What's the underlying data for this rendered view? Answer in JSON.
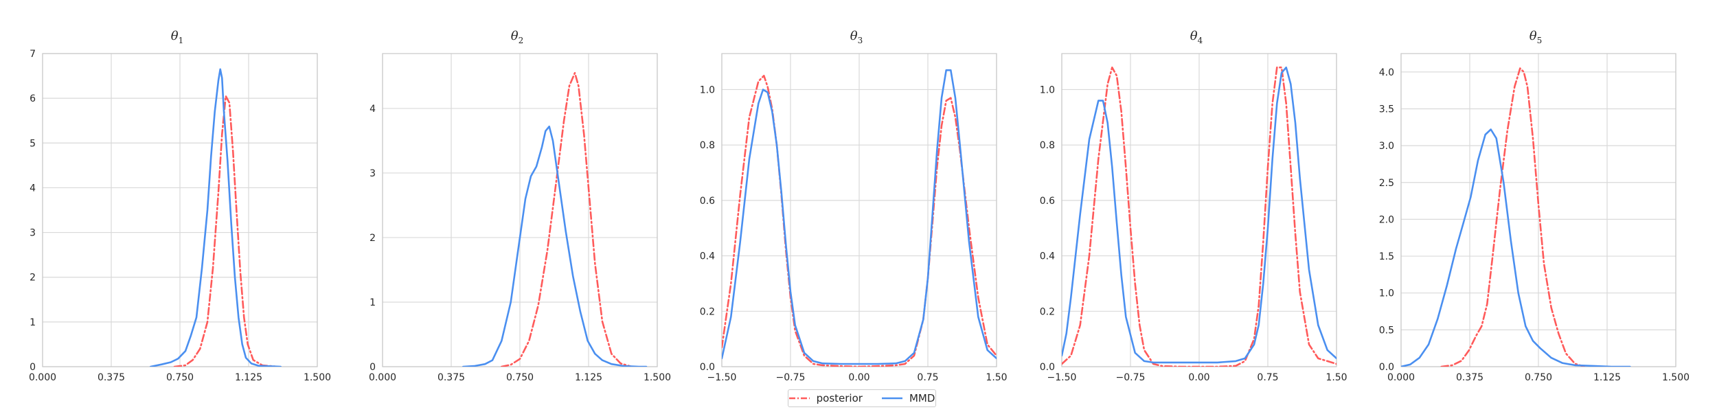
{
  "colors": {
    "posterior": "#ff5a5a",
    "mmd": "#4a8ff0",
    "grid": "#d9d9d9",
    "axis": "#c8c8c8",
    "text": "#262626"
  },
  "legend": {
    "posterior_label": "posterior",
    "mmd_label": "MMD",
    "placement": "bottom-center"
  },
  "chart_data": [
    {
      "type": "line",
      "title": "θ1",
      "title_sym": "θ",
      "title_sub": "1",
      "xlim": [
        0.0,
        1.5
      ],
      "ylim": [
        0,
        7
      ],
      "xticks": [
        0,
        0.375,
        0.75,
        1.125,
        1.5
      ],
      "xtick_labels": [
        "0.000",
        "0.375",
        "0.750",
        "1.125",
        "1.500"
      ],
      "yticks": [
        0,
        1,
        2,
        3,
        4,
        5,
        6,
        7
      ],
      "ytick_labels": [
        "0",
        "1",
        "2",
        "3",
        "4",
        "5",
        "6",
        "7"
      ],
      "grid": true,
      "series": [
        {
          "name": "posterior",
          "style": "dashdot",
          "x": [
            0.72,
            0.78,
            0.82,
            0.86,
            0.9,
            0.93,
            0.96,
            0.98,
            1.0,
            1.02,
            1.04,
            1.06,
            1.08,
            1.1,
            1.12,
            1.15,
            1.2,
            1.28
          ],
          "y": [
            0.0,
            0.03,
            0.15,
            0.4,
            1.0,
            2.2,
            3.9,
            5.2,
            6.05,
            5.9,
            4.8,
            3.4,
            2.1,
            1.1,
            0.5,
            0.15,
            0.03,
            0.0
          ]
        },
        {
          "name": "MMD",
          "style": "solid",
          "x": [
            0.59,
            0.65,
            0.7,
            0.74,
            0.78,
            0.81,
            0.84,
            0.87,
            0.9,
            0.92,
            0.94,
            0.96,
            0.97,
            0.98,
            0.99,
            1.01,
            1.03,
            1.05,
            1.07,
            1.09,
            1.11,
            1.14,
            1.18,
            1.24,
            1.3
          ],
          "y": [
            0.0,
            0.05,
            0.1,
            0.18,
            0.35,
            0.7,
            1.1,
            2.2,
            3.5,
            4.7,
            5.7,
            6.4,
            6.65,
            6.45,
            5.7,
            4.6,
            3.2,
            2.0,
            1.1,
            0.5,
            0.2,
            0.07,
            0.02,
            0.01,
            0.0
          ]
        }
      ]
    },
    {
      "type": "line",
      "title": "θ2",
      "title_sym": "θ",
      "title_sub": "2",
      "xlim": [
        0.0,
        1.5
      ],
      "ylim": [
        0,
        4.85
      ],
      "xticks": [
        0,
        0.375,
        0.75,
        1.125,
        1.5
      ],
      "xtick_labels": [
        "0.000",
        "0.375",
        "0.750",
        "1.125",
        "1.500"
      ],
      "yticks": [
        0,
        1,
        2,
        3,
        4
      ],
      "ytick_labels": [
        "0",
        "1",
        "2",
        "3",
        "4"
      ],
      "grid": true,
      "series": [
        {
          "name": "posterior",
          "style": "dashdot",
          "x": [
            0.65,
            0.7,
            0.75,
            0.8,
            0.85,
            0.9,
            0.95,
            0.99,
            1.02,
            1.05,
            1.07,
            1.1,
            1.13,
            1.16,
            1.2,
            1.25,
            1.3,
            1.36
          ],
          "y": [
            0.0,
            0.03,
            0.12,
            0.4,
            0.95,
            1.8,
            2.9,
            3.8,
            4.35,
            4.55,
            4.35,
            3.6,
            2.6,
            1.6,
            0.7,
            0.2,
            0.05,
            0.0
          ]
        },
        {
          "name": "MMD",
          "style": "solid",
          "x": [
            0.44,
            0.5,
            0.56,
            0.6,
            0.65,
            0.7,
            0.74,
            0.78,
            0.81,
            0.84,
            0.87,
            0.89,
            0.91,
            0.93,
            0.96,
            1.0,
            1.04,
            1.08,
            1.12,
            1.16,
            1.2,
            1.25,
            1.32,
            1.4,
            1.44
          ],
          "y": [
            0.0,
            0.01,
            0.04,
            0.1,
            0.4,
            1.0,
            1.8,
            2.6,
            2.95,
            3.1,
            3.4,
            3.65,
            3.72,
            3.5,
            2.9,
            2.1,
            1.4,
            0.85,
            0.4,
            0.2,
            0.1,
            0.04,
            0.01,
            0.0,
            0.0
          ]
        }
      ]
    },
    {
      "type": "line",
      "title": "θ3",
      "title_sym": "θ",
      "title_sub": "3",
      "xlim": [
        -1.5,
        1.5
      ],
      "ylim": [
        0,
        1.13
      ],
      "xticks": [
        -1.5,
        -0.75,
        0,
        0.75,
        1.5
      ],
      "xtick_labels": [
        "−1.50",
        "−0.75",
        "0.00",
        "0.75",
        "1.50"
      ],
      "yticks": [
        0,
        0.2,
        0.4,
        0.6,
        0.8,
        1.0
      ],
      "ytick_labels": [
        "0.0",
        "0.2",
        "0.4",
        "0.6",
        "0.8",
        "1.0"
      ],
      "grid": true,
      "series": [
        {
          "name": "posterior",
          "style": "dashdot",
          "x": [
            -1.5,
            -1.4,
            -1.3,
            -1.2,
            -1.1,
            -1.04,
            -1.0,
            -0.95,
            -0.9,
            -0.85,
            -0.8,
            -0.75,
            -0.7,
            -0.6,
            -0.5,
            -0.4,
            -0.2,
            0.0,
            0.2,
            0.4,
            0.5,
            0.6,
            0.7,
            0.75,
            0.8,
            0.85,
            0.9,
            0.95,
            1.0,
            1.05,
            1.1,
            1.2,
            1.3,
            1.4,
            1.5
          ],
          "y": [
            0.07,
            0.3,
            0.62,
            0.9,
            1.03,
            1.05,
            1.01,
            0.93,
            0.8,
            0.62,
            0.42,
            0.25,
            0.13,
            0.04,
            0.01,
            0.005,
            0.002,
            0.0,
            0.002,
            0.005,
            0.01,
            0.04,
            0.17,
            0.32,
            0.52,
            0.72,
            0.87,
            0.96,
            0.97,
            0.9,
            0.78,
            0.5,
            0.25,
            0.08,
            0.04
          ]
        },
        {
          "name": "MMD",
          "style": "solid",
          "x": [
            -1.5,
            -1.4,
            -1.3,
            -1.2,
            -1.1,
            -1.05,
            -1.0,
            -0.95,
            -0.9,
            -0.85,
            -0.8,
            -0.75,
            -0.7,
            -0.6,
            -0.5,
            -0.4,
            -0.2,
            0.0,
            0.2,
            0.4,
            0.5,
            0.6,
            0.7,
            0.75,
            0.8,
            0.85,
            0.9,
            0.95,
            1.0,
            1.05,
            1.1,
            1.2,
            1.3,
            1.4,
            1.5
          ],
          "y": [
            0.03,
            0.18,
            0.45,
            0.75,
            0.95,
            1.0,
            0.99,
            0.92,
            0.8,
            0.63,
            0.44,
            0.27,
            0.15,
            0.05,
            0.02,
            0.012,
            0.01,
            0.01,
            0.01,
            0.012,
            0.02,
            0.05,
            0.17,
            0.32,
            0.55,
            0.78,
            0.97,
            1.07,
            1.07,
            0.97,
            0.8,
            0.45,
            0.18,
            0.06,
            0.03
          ]
        }
      ]
    },
    {
      "type": "line",
      "title": "θ4",
      "title_sym": "θ",
      "title_sub": "4",
      "xlim": [
        -1.5,
        1.5
      ],
      "ylim": [
        0,
        1.13
      ],
      "xticks": [
        -1.5,
        -0.75,
        0,
        0.75,
        1.5
      ],
      "xtick_labels": [
        "−1.50",
        "−0.75",
        "0.00",
        "0.75",
        "1.50"
      ],
      "yticks": [
        0,
        0.2,
        0.4,
        0.6,
        0.8,
        1.0
      ],
      "ytick_labels": [
        "0.0",
        "0.2",
        "0.4",
        "0.6",
        "0.8",
        "1.0"
      ],
      "grid": true,
      "series": [
        {
          "name": "posterior",
          "style": "dashdot",
          "x": [
            -1.5,
            -1.4,
            -1.3,
            -1.2,
            -1.1,
            -1.0,
            -0.95,
            -0.9,
            -0.85,
            -0.8,
            -0.75,
            -0.7,
            -0.65,
            -0.6,
            -0.5,
            -0.4,
            -0.2,
            0.0,
            0.2,
            0.4,
            0.5,
            0.6,
            0.65,
            0.7,
            0.75,
            0.8,
            0.85,
            0.9,
            0.95,
            1.0,
            1.05,
            1.1,
            1.2,
            1.3,
            1.4,
            1.5
          ],
          "y": [
            0.01,
            0.04,
            0.15,
            0.4,
            0.75,
            1.02,
            1.08,
            1.05,
            0.92,
            0.72,
            0.5,
            0.3,
            0.15,
            0.06,
            0.01,
            0.002,
            0.0,
            0.0,
            0.0,
            0.003,
            0.02,
            0.1,
            0.22,
            0.45,
            0.72,
            0.95,
            1.08,
            1.08,
            0.95,
            0.72,
            0.48,
            0.27,
            0.08,
            0.03,
            0.02,
            0.01
          ]
        },
        {
          "name": "MMD",
          "style": "solid",
          "x": [
            -1.5,
            -1.45,
            -1.4,
            -1.3,
            -1.2,
            -1.1,
            -1.05,
            -1.0,
            -0.95,
            -0.9,
            -0.85,
            -0.8,
            -0.7,
            -0.6,
            -0.5,
            -0.4,
            -0.2,
            0.0,
            0.2,
            0.4,
            0.5,
            0.6,
            0.65,
            0.7,
            0.75,
            0.8,
            0.85,
            0.9,
            0.95,
            1.0,
            1.05,
            1.1,
            1.2,
            1.3,
            1.4,
            1.5
          ],
          "y": [
            0.04,
            0.12,
            0.25,
            0.55,
            0.82,
            0.96,
            0.96,
            0.88,
            0.72,
            0.52,
            0.33,
            0.18,
            0.05,
            0.02,
            0.015,
            0.015,
            0.015,
            0.015,
            0.015,
            0.02,
            0.03,
            0.08,
            0.15,
            0.3,
            0.5,
            0.75,
            0.95,
            1.06,
            1.08,
            1.02,
            0.88,
            0.68,
            0.35,
            0.15,
            0.06,
            0.03
          ]
        }
      ]
    },
    {
      "type": "line",
      "title": "θ5",
      "title_sym": "θ",
      "title_sub": "5",
      "xlim": [
        0.0,
        1.5
      ],
      "ylim": [
        0,
        4.25
      ],
      "xticks": [
        0,
        0.375,
        0.75,
        1.125,
        1.5
      ],
      "xtick_labels": [
        "0.000",
        "0.375",
        "0.750",
        "1.125",
        "1.500"
      ],
      "yticks": [
        0,
        0.5,
        1.0,
        1.5,
        2.0,
        2.5,
        3.0,
        3.5,
        4.0
      ],
      "ytick_labels": [
        "0.0",
        "0.5",
        "1.0",
        "1.5",
        "2.0",
        "2.5",
        "3.0",
        "3.5",
        "4.0"
      ],
      "grid": true,
      "series": [
        {
          "name": "posterior",
          "style": "dashdot",
          "x": [
            0.22,
            0.28,
            0.33,
            0.37,
            0.41,
            0.44,
            0.47,
            0.5,
            0.54,
            0.58,
            0.62,
            0.65,
            0.67,
            0.69,
            0.72,
            0.75,
            0.78,
            0.82,
            0.86,
            0.9,
            0.95,
            1.0
          ],
          "y": [
            0.0,
            0.02,
            0.08,
            0.22,
            0.42,
            0.55,
            0.85,
            1.5,
            2.4,
            3.2,
            3.8,
            4.05,
            4.0,
            3.8,
            3.1,
            2.2,
            1.4,
            0.8,
            0.45,
            0.18,
            0.04,
            0.0
          ]
        },
        {
          "name": "MMD",
          "style": "solid",
          "x": [
            0.0,
            0.05,
            0.1,
            0.15,
            0.2,
            0.25,
            0.3,
            0.34,
            0.38,
            0.42,
            0.46,
            0.49,
            0.52,
            0.56,
            0.6,
            0.64,
            0.68,
            0.72,
            0.76,
            0.82,
            0.88,
            0.95,
            1.05,
            1.15,
            1.25
          ],
          "y": [
            0.0,
            0.03,
            0.12,
            0.3,
            0.65,
            1.1,
            1.6,
            1.95,
            2.3,
            2.8,
            3.15,
            3.22,
            3.1,
            2.5,
            1.7,
            1.0,
            0.55,
            0.35,
            0.25,
            0.12,
            0.05,
            0.02,
            0.01,
            0.0,
            0.0
          ]
        }
      ]
    }
  ]
}
